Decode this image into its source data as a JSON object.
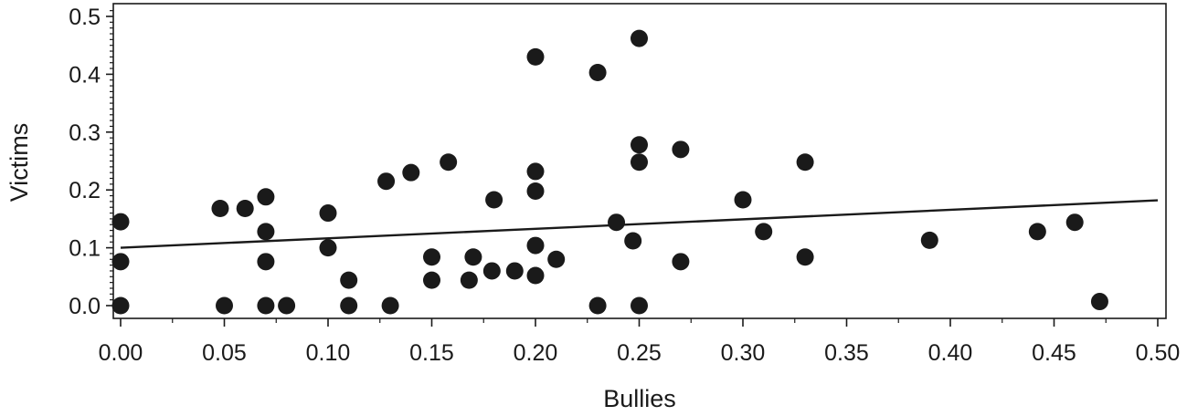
{
  "chart_data": {
    "type": "scatter",
    "title": "",
    "xlabel": "Bullies",
    "ylabel": "Victims",
    "xlim": [
      0,
      0.5
    ],
    "ylim": [
      0,
      0.5
    ],
    "x_ticks": [
      "0.00",
      "0.05",
      "0.10",
      "0.15",
      "0.20",
      "0.25",
      "0.30",
      "0.35",
      "0.40",
      "0.45",
      "0.50"
    ],
    "y_ticks": [
      "0.0",
      "0.1",
      "0.2",
      "0.3",
      "0.4",
      "0.5"
    ],
    "grid": false,
    "legend": "none",
    "colors": {
      "points": "#1a1a1a",
      "line": "#1a1a1a",
      "axis": "#1a1a1a"
    },
    "trend_line": {
      "x": [
        0,
        0.5
      ],
      "y": [
        0.1,
        0.182
      ]
    },
    "points": [
      [
        0.0,
        0.145
      ],
      [
        0.0,
        0.076
      ],
      [
        0.0,
        0.0
      ],
      [
        0.048,
        0.168
      ],
      [
        0.05,
        0.0
      ],
      [
        0.06,
        0.168
      ],
      [
        0.07,
        0.188
      ],
      [
        0.07,
        0.128
      ],
      [
        0.07,
        0.076
      ],
      [
        0.07,
        0.0
      ],
      [
        0.08,
        0.0
      ],
      [
        0.1,
        0.16
      ],
      [
        0.1,
        0.1
      ],
      [
        0.11,
        0.044
      ],
      [
        0.11,
        0.0
      ],
      [
        0.128,
        0.215
      ],
      [
        0.13,
        0.0
      ],
      [
        0.14,
        0.23
      ],
      [
        0.15,
        0.084
      ],
      [
        0.15,
        0.044
      ],
      [
        0.158,
        0.248
      ],
      [
        0.168,
        0.044
      ],
      [
        0.17,
        0.084
      ],
      [
        0.179,
        0.06
      ],
      [
        0.18,
        0.183
      ],
      [
        0.19,
        0.06
      ],
      [
        0.2,
        0.43
      ],
      [
        0.2,
        0.232
      ],
      [
        0.2,
        0.198
      ],
      [
        0.2,
        0.104
      ],
      [
        0.2,
        0.052
      ],
      [
        0.21,
        0.08
      ],
      [
        0.23,
        0.403
      ],
      [
        0.23,
        0.0
      ],
      [
        0.239,
        0.144
      ],
      [
        0.247,
        0.112
      ],
      [
        0.25,
        0.462
      ],
      [
        0.25,
        0.278
      ],
      [
        0.25,
        0.248
      ],
      [
        0.25,
        0.0
      ],
      [
        0.27,
        0.27
      ],
      [
        0.27,
        0.076
      ],
      [
        0.3,
        0.183
      ],
      [
        0.31,
        0.128
      ],
      [
        0.33,
        0.248
      ],
      [
        0.33,
        0.084
      ],
      [
        0.39,
        0.113
      ],
      [
        0.442,
        0.128
      ],
      [
        0.46,
        0.144
      ],
      [
        0.472,
        0.007
      ]
    ]
  }
}
